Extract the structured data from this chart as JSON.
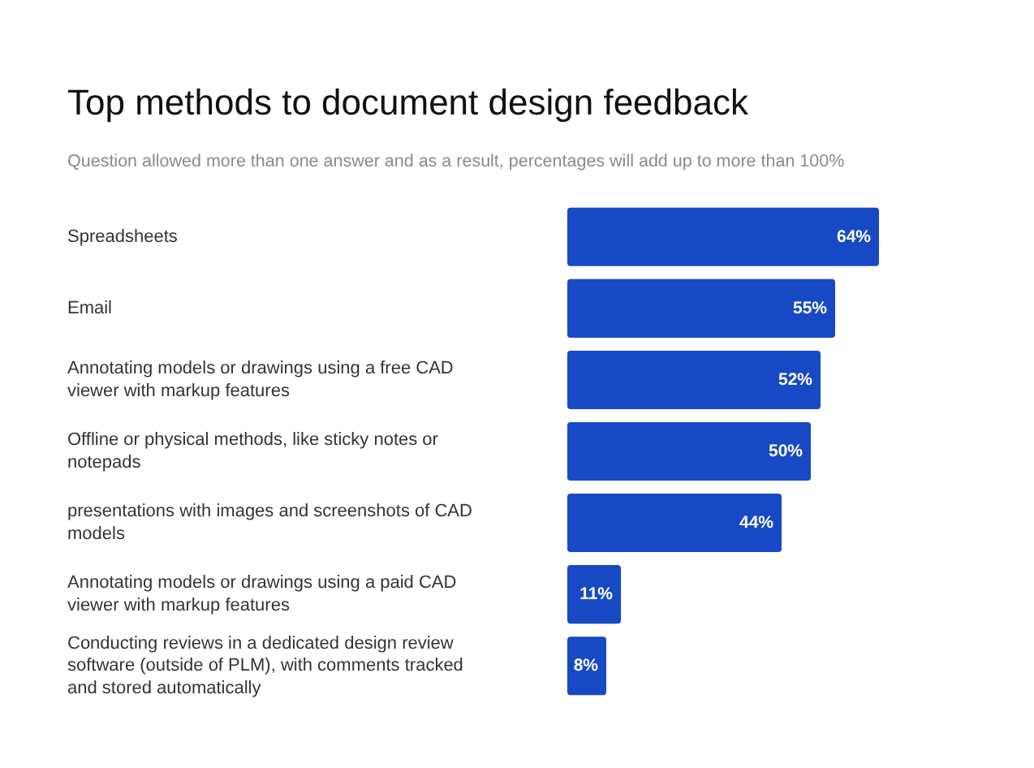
{
  "chart_data": {
    "type": "bar",
    "orientation": "horizontal",
    "title": "Top methods to document design feedback",
    "subtitle": "Question allowed more than one answer and as a result, percentages will add up to more than 100%",
    "categories": [
      "Spreadsheets",
      "Email",
      "Annotating models or drawings using a free CAD viewer with markup features",
      "Offline or physical methods, like sticky notes or notepads",
      "presentations with images and screenshots of CAD models",
      "Annotating models or drawings using a paid CAD viewer with markup features",
      "Conducting reviews in a dedicated design review software (outside of PLM), with comments tracked and stored automatically"
    ],
    "values": [
      64,
      55,
      52,
      50,
      44,
      11,
      8
    ],
    "value_labels": [
      "64%",
      "55%",
      "52%",
      "50%",
      "44%",
      "11%",
      "8%"
    ],
    "color": "#1749c5"
  }
}
